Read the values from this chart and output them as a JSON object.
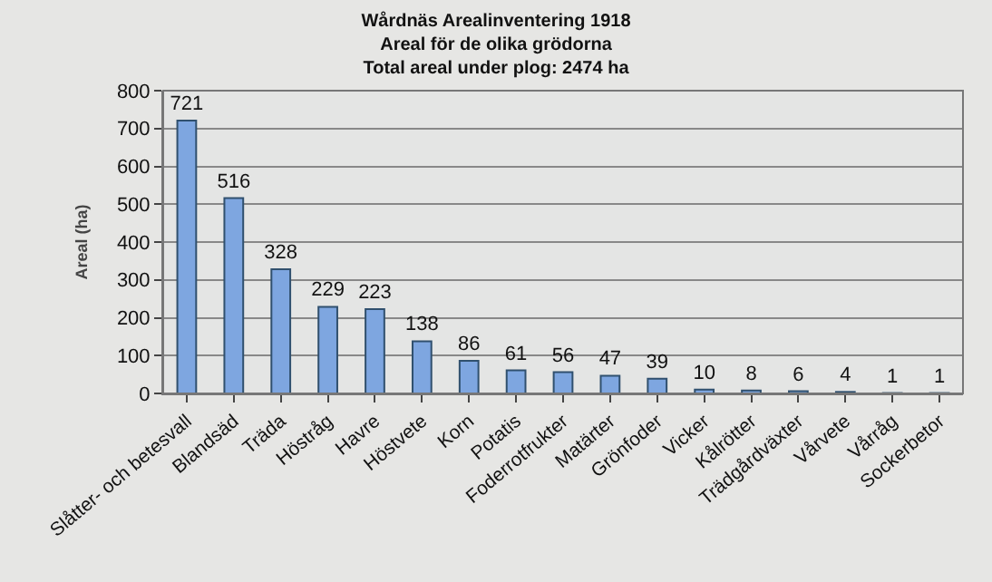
{
  "chart_data": {
    "type": "bar",
    "title": "Wårdnäs Arealinventering 1918\nAreal för de olika grödorna\nTotal areal under plog: 2474 ha",
    "ylabel": "Areal (ha)",
    "categories": [
      "Slåtter- och betesvall",
      "Blandsäd",
      "Träda",
      "Höstråg",
      "Havre",
      "Höstvete",
      "Korn",
      "Potatis",
      "Foderrotfrukter",
      "Matärter",
      "Grönfoder",
      "Vicker",
      "Kålrötter",
      "Trädgårdväxter",
      "Vårvete",
      "Vårråg",
      "Sockerbetor"
    ],
    "values": [
      721,
      516,
      328,
      229,
      223,
      138,
      86,
      61,
      56,
      47,
      39,
      10,
      8,
      6,
      4,
      1,
      1
    ],
    "color": "#7ea6e0",
    "ylim": [
      0,
      800
    ],
    "yticks": [
      0,
      100,
      200,
      300,
      400,
      500,
      600,
      700,
      800
    ],
    "grid": "y",
    "data_labels": true
  }
}
